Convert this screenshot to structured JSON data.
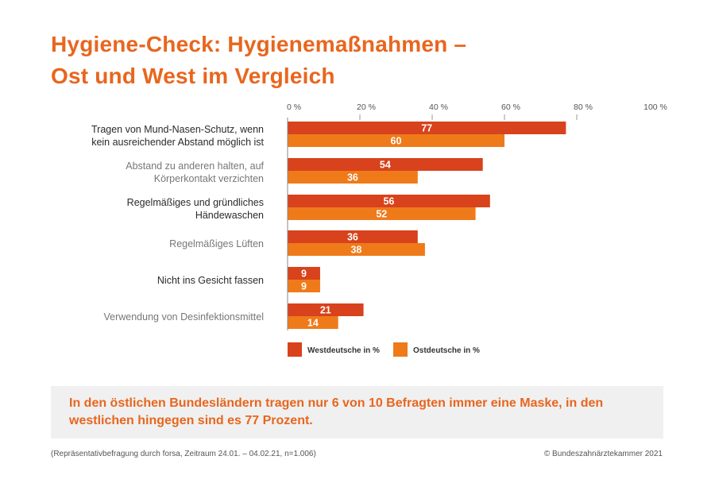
{
  "title_line1": "Hygiene-Check: Hygienemaßnahmen –",
  "title_line2": "Ost und West im Vergleich",
  "chart_data": {
    "type": "bar",
    "orientation": "horizontal",
    "axis_ticks": [
      "0 %",
      "20 %",
      "40 %",
      "60 %",
      "80 %",
      "100 %"
    ],
    "xlim": [
      0,
      100
    ],
    "categories": [
      "Tragen von Mund-Nasen-Schutz, wenn kein ausreichender Abstand möglich ist",
      "Abstand zu anderen halten, auf Körperkontakt verzichten",
      "Regelmäßiges und gründliches Händewaschen",
      "Regelmäßiges Lüften",
      "Nicht ins Gesicht fassen",
      "Verwendung von Desinfektionsmittel"
    ],
    "series": [
      {
        "name": "Westdeutsche in %",
        "color": "#d8421c",
        "values": [
          77,
          54,
          56,
          36,
          9,
          21
        ]
      },
      {
        "name": "Ostdeutsche in %",
        "color": "#ef7a1a",
        "values": [
          60,
          36,
          52,
          38,
          9,
          14
        ]
      }
    ],
    "legend": "bottom"
  },
  "callout": {
    "text": "In den östlichen Bundesländern tragen nur 6 von 10 Befragten immer eine Maske, in den westlichen hingegen sind es 77 Prozent."
  },
  "footer": {
    "source": "(Repräsentativbefragung durch forsa, Zeitraum 24.01. – 04.02.21, n=1.006)",
    "copyright": "© Bundeszahnärztekammer 2021"
  }
}
